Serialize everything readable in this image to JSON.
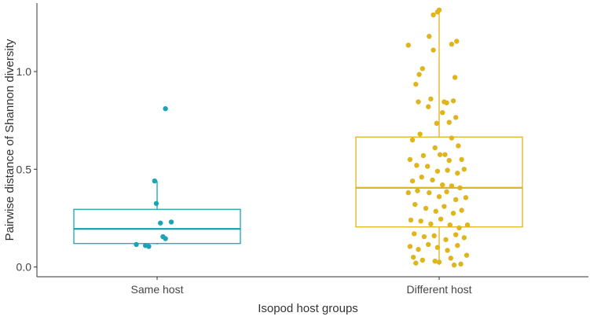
{
  "chart_data": {
    "type": "boxplot",
    "title": "",
    "xlabel": "Isopod host groups",
    "ylabel": "Pairwise distance of Shannon diversity",
    "ylim": [
      -0.05,
      1.35
    ],
    "yticks": [
      0.0,
      0.5,
      1.0
    ],
    "ytick_labels": [
      "0.0",
      "0.5",
      "1.0"
    ],
    "grid": false,
    "categories": [
      "Same host",
      "Different host"
    ],
    "groups": [
      {
        "name": "Same host",
        "color": "#1aa5b4",
        "q1": 0.12,
        "median": 0.195,
        "q3": 0.295,
        "whisker_low": 0.115,
        "whisker_high": 0.44,
        "points": [
          {
            "offset": -0.25,
            "y": 0.115
          },
          {
            "offset": -0.14,
            "y": 0.11
          },
          {
            "offset": -0.1,
            "y": 0.105
          },
          {
            "offset": 0.07,
            "y": 0.155
          },
          {
            "offset": 0.1,
            "y": 0.145
          },
          {
            "offset": 0.04,
            "y": 0.225
          },
          {
            "offset": 0.17,
            "y": 0.23
          },
          {
            "offset": -0.03,
            "y": 0.44
          },
          {
            "offset": -0.01,
            "y": 0.325
          },
          {
            "offset": 0.1,
            "y": 0.81
          }
        ]
      },
      {
        "name": "Different host",
        "color": "#e0b41c",
        "q1": 0.205,
        "median": 0.405,
        "q3": 0.665,
        "whisker_low": 0.01,
        "whisker_high": 1.32,
        "points": [
          {
            "offset": -0.37,
            "y": 1.135
          },
          {
            "offset": -0.2,
            "y": 1.015
          },
          {
            "offset": -0.24,
            "y": 0.985
          },
          {
            "offset": -0.12,
            "y": 1.18
          },
          {
            "offset": 0.0,
            "y": 1.315
          },
          {
            "offset": -0.07,
            "y": 1.29
          },
          {
            "offset": -0.02,
            "y": 1.305
          },
          {
            "offset": -0.07,
            "y": 1.11
          },
          {
            "offset": 0.21,
            "y": 1.155
          },
          {
            "offset": 0.15,
            "y": 1.14
          },
          {
            "offset": 0.19,
            "y": 0.97
          },
          {
            "offset": 0.17,
            "y": 0.85
          },
          {
            "offset": -0.28,
            "y": 0.935
          },
          {
            "offset": -0.1,
            "y": 0.86
          },
          {
            "offset": -0.13,
            "y": 0.82
          },
          {
            "offset": -0.25,
            "y": 0.845
          },
          {
            "offset": 0.06,
            "y": 0.845
          },
          {
            "offset": 0.09,
            "y": 0.84
          },
          {
            "offset": 0.2,
            "y": 0.765
          },
          {
            "offset": 0.12,
            "y": 0.74
          },
          {
            "offset": 0.04,
            "y": 0.79
          },
          {
            "offset": -0.03,
            "y": 0.735
          },
          {
            "offset": -0.23,
            "y": 0.68
          },
          {
            "offset": 0.15,
            "y": 0.66
          },
          {
            "offset": 0.23,
            "y": 0.62
          },
          {
            "offset": -0.32,
            "y": 0.65
          },
          {
            "offset": -0.19,
            "y": 0.57
          },
          {
            "offset": -0.05,
            "y": 0.61
          },
          {
            "offset": 0.01,
            "y": 0.575
          },
          {
            "offset": 0.07,
            "y": 0.575
          },
          {
            "offset": 0.12,
            "y": 0.545
          },
          {
            "offset": 0.27,
            "y": 0.55
          },
          {
            "offset": -0.35,
            "y": 0.55
          },
          {
            "offset": -0.27,
            "y": 0.52
          },
          {
            "offset": -0.14,
            "y": 0.515
          },
          {
            "offset": -0.02,
            "y": 0.49
          },
          {
            "offset": 0.1,
            "y": 0.495
          },
          {
            "offset": 0.22,
            "y": 0.48
          },
          {
            "offset": 0.3,
            "y": 0.5
          },
          {
            "offset": -0.32,
            "y": 0.44
          },
          {
            "offset": -0.21,
            "y": 0.46
          },
          {
            "offset": -0.08,
            "y": 0.445
          },
          {
            "offset": 0.04,
            "y": 0.42
          },
          {
            "offset": 0.15,
            "y": 0.415
          },
          {
            "offset": 0.25,
            "y": 0.405
          },
          {
            "offset": -0.37,
            "y": 0.38
          },
          {
            "offset": -0.26,
            "y": 0.39
          },
          {
            "offset": -0.12,
            "y": 0.38
          },
          {
            "offset": 0.0,
            "y": 0.36
          },
          {
            "offset": 0.09,
            "y": 0.385
          },
          {
            "offset": 0.2,
            "y": 0.345
          },
          {
            "offset": 0.32,
            "y": 0.355
          },
          {
            "offset": -0.29,
            "y": 0.32
          },
          {
            "offset": -0.16,
            "y": 0.3
          },
          {
            "offset": -0.04,
            "y": 0.285
          },
          {
            "offset": 0.06,
            "y": 0.31
          },
          {
            "offset": 0.17,
            "y": 0.275
          },
          {
            "offset": 0.27,
            "y": 0.29
          },
          {
            "offset": -0.34,
            "y": 0.24
          },
          {
            "offset": -0.22,
            "y": 0.235
          },
          {
            "offset": -0.1,
            "y": 0.22
          },
          {
            "offset": 0.02,
            "y": 0.245
          },
          {
            "offset": 0.13,
            "y": 0.215
          },
          {
            "offset": 0.24,
            "y": 0.2
          },
          {
            "offset": 0.34,
            "y": 0.215
          },
          {
            "offset": -0.3,
            "y": 0.17
          },
          {
            "offset": -0.18,
            "y": 0.155
          },
          {
            "offset": -0.06,
            "y": 0.16
          },
          {
            "offset": 0.08,
            "y": 0.14
          },
          {
            "offset": 0.2,
            "y": 0.165
          },
          {
            "offset": 0.3,
            "y": 0.15
          },
          {
            "offset": -0.35,
            "y": 0.105
          },
          {
            "offset": -0.25,
            "y": 0.09
          },
          {
            "offset": -0.13,
            "y": 0.115
          },
          {
            "offset": -0.02,
            "y": 0.1
          },
          {
            "offset": 0.1,
            "y": 0.085
          },
          {
            "offset": 0.22,
            "y": 0.11
          },
          {
            "offset": 0.33,
            "y": 0.06
          },
          {
            "offset": -0.31,
            "y": 0.05
          },
          {
            "offset": -0.2,
            "y": 0.035
          },
          {
            "offset": -0.05,
            "y": 0.03
          },
          {
            "offset": 0.0,
            "y": 0.025
          },
          {
            "offset": 0.14,
            "y": 0.045
          },
          {
            "offset": 0.26,
            "y": 0.015
          },
          {
            "offset": 0.18,
            "y": 0.01
          },
          {
            "offset": -0.28,
            "y": 0.02
          }
        ]
      }
    ]
  }
}
